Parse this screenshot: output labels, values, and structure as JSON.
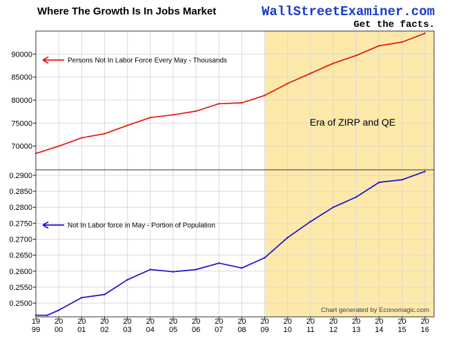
{
  "header": {
    "title": "Where The Growth Is In Jobs Market",
    "brand": "WallStreetExaminer.com",
    "tagline": "Get the facts."
  },
  "chart_data": [
    {
      "type": "line",
      "panel": "top",
      "ylim": [
        65000,
        95000
      ],
      "yticks": [
        {
          "value": 70000,
          "label": "70000"
        },
        {
          "value": 75000,
          "label": "75000"
        },
        {
          "value": 80000,
          "label": "80000"
        },
        {
          "value": 85000,
          "label": "85000"
        },
        {
          "value": 90000,
          "label": "90000"
        }
      ],
      "series": [
        {
          "name": "Persons Not In Labor Force Every May - Thousands",
          "color": "#e8140a",
          "x": [
            1999.0,
            2000.0,
            2001.0,
            2002.0,
            2003.0,
            2004.0,
            2005.0,
            2006.0,
            2007.0,
            2008.0,
            2009.0,
            2010.0,
            2011.0,
            2012.0,
            2013.0,
            2014.0,
            2015.0,
            2016.0
          ],
          "values": [
            68400,
            70000,
            71800,
            72700,
            74500,
            76200,
            76800,
            77600,
            79200,
            79400,
            81000,
            83600,
            85800,
            88000,
            89700,
            91800,
            92600,
            94500
          ]
        }
      ]
    },
    {
      "type": "line",
      "panel": "bottom",
      "ylim": [
        0.2457,
        0.2915
      ],
      "yticks": [
        {
          "value": 0.25,
          "label": "0.2500"
        },
        {
          "value": 0.255,
          "label": "0.2550"
        },
        {
          "value": 0.26,
          "label": "0.2600"
        },
        {
          "value": 0.265,
          "label": "0.2650"
        },
        {
          "value": 0.27,
          "label": "0.2700"
        },
        {
          "value": 0.275,
          "label": "0.2750"
        },
        {
          "value": 0.28,
          "label": "0.2800"
        },
        {
          "value": 0.285,
          "label": "0.2850"
        },
        {
          "value": 0.29,
          "label": "0.2900"
        }
      ],
      "series": [
        {
          "name": "Not In Labor force in May - Portion of Population",
          "color": "#1a10d0",
          "x": [
            1999.0,
            1999.5,
            2000.0,
            2001.0,
            2002.0,
            2003.0,
            2004.0,
            2005.0,
            2006.0,
            2007.0,
            2008.0,
            2009.0,
            2010.0,
            2011.0,
            2012.0,
            2013.0,
            2014.0,
            2015.0,
            2016.0
          ],
          "values": [
            0.2462,
            0.2462,
            0.2478,
            0.2517,
            0.2527,
            0.2573,
            0.2605,
            0.2598,
            0.2605,
            0.2625,
            0.261,
            0.2642,
            0.2705,
            0.2755,
            0.28,
            0.2832,
            0.2878,
            0.2886,
            0.2912
          ]
        }
      ]
    }
  ],
  "x_axis": {
    "xlim": [
      1999.0,
      2016.4
    ],
    "ticks": [
      {
        "year": 1999,
        "top": "19",
        "bottom": "99"
      },
      {
        "year": 2000,
        "top": "20",
        "bottom": "00"
      },
      {
        "year": 2001,
        "top": "20",
        "bottom": "01"
      },
      {
        "year": 2002,
        "top": "20",
        "bottom": "02"
      },
      {
        "year": 2003,
        "top": "20",
        "bottom": "03"
      },
      {
        "year": 2004,
        "top": "20",
        "bottom": "04"
      },
      {
        "year": 2005,
        "top": "20",
        "bottom": "05"
      },
      {
        "year": 2006,
        "top": "20",
        "bottom": "06"
      },
      {
        "year": 2007,
        "top": "20",
        "bottom": "07"
      },
      {
        "year": 2008,
        "top": "20",
        "bottom": "08"
      },
      {
        "year": 2009,
        "top": "20",
        "bottom": "09"
      },
      {
        "year": 2010,
        "top": "20",
        "bottom": "10"
      },
      {
        "year": 2011,
        "top": "20",
        "bottom": "11"
      },
      {
        "year": 2012,
        "top": "20",
        "bottom": "12"
      },
      {
        "year": 2013,
        "top": "20",
        "bottom": "13"
      },
      {
        "year": 2014,
        "top": "20",
        "bottom": "14"
      },
      {
        "year": 2015,
        "top": "20",
        "bottom": "15"
      },
      {
        "year": 2016,
        "top": "20",
        "bottom": "16"
      }
    ]
  },
  "annotations": {
    "era_label": "Era of ZIRP and QE",
    "era_start": 2009.0,
    "era_color": "#fde9a9",
    "credit": "Chart generated by Economagic.com"
  },
  "grid": true
}
